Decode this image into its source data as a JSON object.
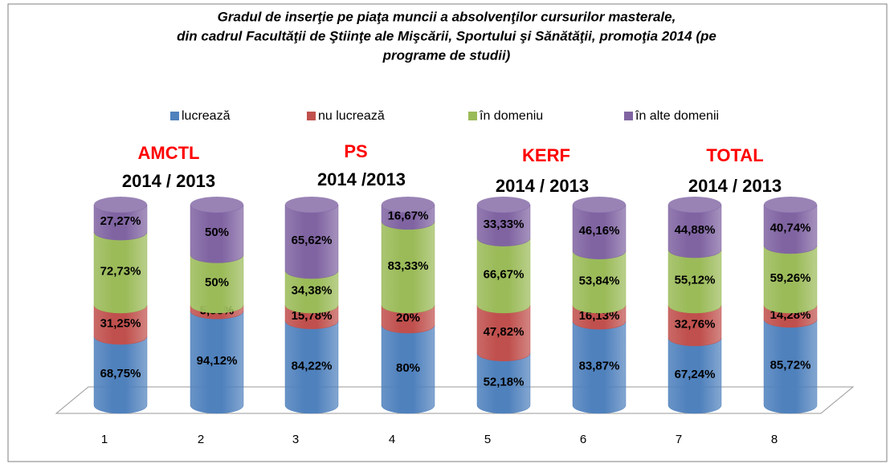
{
  "chart_data": {
    "type": "stacked_cylinder",
    "title": [
      "Gradul de inserţie pe piaţa muncii a absolvenţilor cursurilor masterale,",
      "din cadrul Facultăţii de Ştiinţe ale Mişcării, Sportului şi Sănătăţii, promoţia 2014 (pe",
      "programe de studii)"
    ],
    "categories": [
      "1",
      "2",
      "3",
      "4",
      "5",
      "6",
      "7",
      "8"
    ],
    "series": [
      {
        "name": "lucrează",
        "color": "#4f81bd",
        "values": [
          68.75,
          94.12,
          84.22,
          80,
          52.18,
          83.87,
          67.24,
          85.72
        ],
        "value_labels": [
          "68,75%",
          "94,12%",
          "84,22%",
          "80%",
          "52,18%",
          "83,87%",
          "67,24%",
          "85,72%"
        ]
      },
      {
        "name": "nu lucrează",
        "color": "#c0504d",
        "values": [
          31.25,
          5.88,
          15.78,
          20,
          47.82,
          16.13,
          32.76,
          14.28
        ],
        "value_labels": [
          "31,25%",
          "5,88%",
          "15,78%",
          "20%",
          "47,82%",
          "16,13%",
          "32,76%",
          "14,28%"
        ]
      },
      {
        "name": "în domeniu",
        "color": "#9bbb59",
        "values": [
          72.73,
          50,
          34.38,
          83.33,
          66.67,
          53.84,
          55.12,
          59.26
        ],
        "value_labels": [
          "72,73%",
          "50%",
          "34,38%",
          "83,33%",
          "66,67%",
          "53,84%",
          "55,12%",
          "59,26%"
        ]
      },
      {
        "name": "în alte domenii",
        "color": "#8064a2",
        "values": [
          27.27,
          50,
          65.62,
          16.67,
          33.33,
          46.16,
          44.88,
          40.74
        ],
        "value_labels": [
          "27,27%",
          "50%",
          "65,62%",
          "16,67%",
          "33,33%",
          "46,16%",
          "44,88%",
          "40,74%"
        ]
      }
    ],
    "annotations": [
      "AMCTL",
      "2014 / 2013",
      "PS",
      "2014 /2013",
      "KERF",
      "2014 / 2013",
      "TOTAL",
      "2014 / 2013"
    ],
    "legend": "top"
  }
}
